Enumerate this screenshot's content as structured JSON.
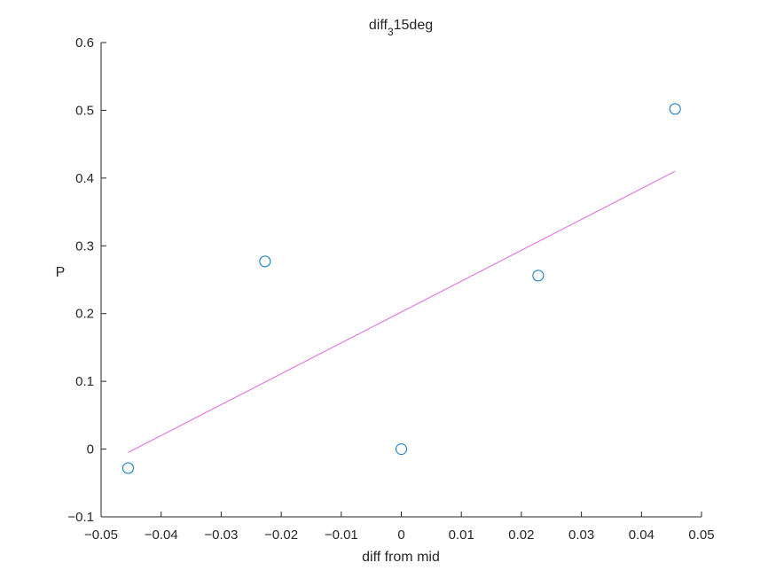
{
  "chart_data": {
    "type": "scatter",
    "title": {
      "base": "diff",
      "subscript": "3",
      "rest": "15deg"
    },
    "xlabel": "diff from mid",
    "ylabel": "P",
    "xlim": [
      -0.05,
      0.05
    ],
    "ylim": [
      -0.1,
      0.6
    ],
    "xticks": [
      -0.05,
      -0.04,
      -0.03,
      -0.02,
      -0.01,
      0,
      0.01,
      0.02,
      0.03,
      0.04,
      0.05
    ],
    "xtick_labels": [
      "−0.05",
      "−0.04",
      "−0.03",
      "−0.02",
      "−0.01",
      "0",
      "0.01",
      "0.02",
      "0.03",
      "0.04",
      "0.05"
    ],
    "yticks": [
      -0.1,
      0,
      0.1,
      0.2,
      0.3,
      0.4,
      0.5,
      0.6
    ],
    "ytick_labels": [
      "−0.1",
      "0",
      "0.1",
      "0.2",
      "0.3",
      "0.4",
      "0.5",
      "0.6"
    ],
    "grid": false,
    "series": [
      {
        "type": "scatter",
        "marker": "open-circle",
        "color": "#0072BD",
        "x": [
          -0.0455,
          -0.0227,
          0.0,
          0.0228,
          0.0456
        ],
        "y": [
          -0.028,
          0.277,
          0.0,
          0.256,
          0.502
        ]
      },
      {
        "type": "line",
        "color": "#E066E0",
        "x": [
          -0.0455,
          0.0456
        ],
        "y": [
          -0.005,
          0.41
        ]
      }
    ]
  }
}
